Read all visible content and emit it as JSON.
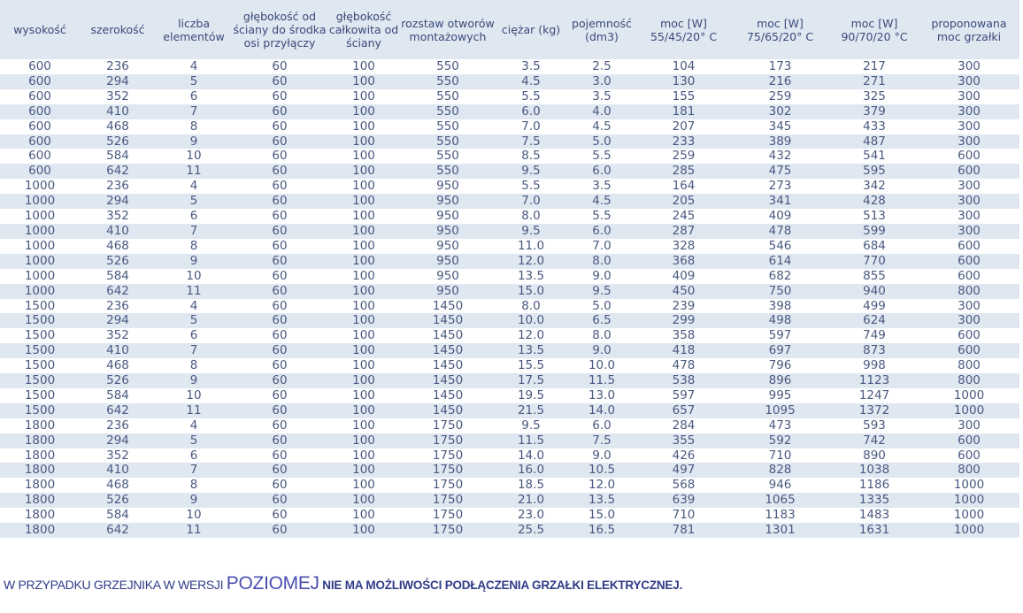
{
  "table": {
    "headers": [
      "wysokość",
      "szerokość",
      "liczba elementów",
      "głębokość od ściany do środka osi przyłączy",
      "głębokość całkowita od ściany",
      "rozstaw otworów montażowych",
      "ciężar (kg)",
      "pojemność (dm3)",
      "moc [W] 55/45/20° C",
      "moc [W] 75/65/20° C",
      "moc [W] 90/70/20 °C",
      "proponowana moc grzałki"
    ],
    "rows": [
      [
        "600",
        "236",
        "4",
        "60",
        "100",
        "550",
        "3.5",
        "2.5",
        "104",
        "173",
        "217",
        "300"
      ],
      [
        "600",
        "294",
        "5",
        "60",
        "100",
        "550",
        "4.5",
        "3.0",
        "130",
        "216",
        "271",
        "300"
      ],
      [
        "600",
        "352",
        "6",
        "60",
        "100",
        "550",
        "5.5",
        "3.5",
        "155",
        "259",
        "325",
        "300"
      ],
      [
        "600",
        "410",
        "7",
        "60",
        "100",
        "550",
        "6.0",
        "4.0",
        "181",
        "302",
        "379",
        "300"
      ],
      [
        "600",
        "468",
        "8",
        "60",
        "100",
        "550",
        "7.0",
        "4.5",
        "207",
        "345",
        "433",
        "300"
      ],
      [
        "600",
        "526",
        "9",
        "60",
        "100",
        "550",
        "7.5",
        "5.0",
        "233",
        "389",
        "487",
        "300"
      ],
      [
        "600",
        "584",
        "10",
        "60",
        "100",
        "550",
        "8.5",
        "5.5",
        "259",
        "432",
        "541",
        "600"
      ],
      [
        "600",
        "642",
        "11",
        "60",
        "100",
        "550",
        "9.5",
        "6.0",
        "285",
        "475",
        "595",
        "600"
      ],
      [
        "1000",
        "236",
        "4",
        "60",
        "100",
        "950",
        "5.5",
        "3.5",
        "164",
        "273",
        "342",
        "300"
      ],
      [
        "1000",
        "294",
        "5",
        "60",
        "100",
        "950",
        "7.0",
        "4.5",
        "205",
        "341",
        "428",
        "300"
      ],
      [
        "1000",
        "352",
        "6",
        "60",
        "100",
        "950",
        "8.0",
        "5.5",
        "245",
        "409",
        "513",
        "300"
      ],
      [
        "1000",
        "410",
        "7",
        "60",
        "100",
        "950",
        "9.5",
        "6.0",
        "287",
        "478",
        "599",
        "300"
      ],
      [
        "1000",
        "468",
        "8",
        "60",
        "100",
        "950",
        "11.0",
        "7.0",
        "328",
        "546",
        "684",
        "600"
      ],
      [
        "1000",
        "526",
        "9",
        "60",
        "100",
        "950",
        "12.0",
        "8.0",
        "368",
        "614",
        "770",
        "600"
      ],
      [
        "1000",
        "584",
        "10",
        "60",
        "100",
        "950",
        "13.5",
        "9.0",
        "409",
        "682",
        "855",
        "600"
      ],
      [
        "1000",
        "642",
        "11",
        "60",
        "100",
        "950",
        "15.0",
        "9.5",
        "450",
        "750",
        "940",
        "800"
      ],
      [
        "1500",
        "236",
        "4",
        "60",
        "100",
        "1450",
        "8.0",
        "5.0",
        "239",
        "398",
        "499",
        "300"
      ],
      [
        "1500",
        "294",
        "5",
        "60",
        "100",
        "1450",
        "10.0",
        "6.5",
        "299",
        "498",
        "624",
        "300"
      ],
      [
        "1500",
        "352",
        "6",
        "60",
        "100",
        "1450",
        "12.0",
        "8.0",
        "358",
        "597",
        "749",
        "600"
      ],
      [
        "1500",
        "410",
        "7",
        "60",
        "100",
        "1450",
        "13.5",
        "9.0",
        "418",
        "697",
        "873",
        "600"
      ],
      [
        "1500",
        "468",
        "8",
        "60",
        "100",
        "1450",
        "15.5",
        "10.0",
        "478",
        "796",
        "998",
        "800"
      ],
      [
        "1500",
        "526",
        "9",
        "60",
        "100",
        "1450",
        "17.5",
        "11.5",
        "538",
        "896",
        "1123",
        "800"
      ],
      [
        "1500",
        "584",
        "10",
        "60",
        "100",
        "1450",
        "19.5",
        "13.0",
        "597",
        "995",
        "1247",
        "1000"
      ],
      [
        "1500",
        "642",
        "11",
        "60",
        "100",
        "1450",
        "21.5",
        "14.0",
        "657",
        "1095",
        "1372",
        "1000"
      ],
      [
        "1800",
        "236",
        "4",
        "60",
        "100",
        "1750",
        "9.5",
        "6.0",
        "284",
        "473",
        "593",
        "300"
      ],
      [
        "1800",
        "294",
        "5",
        "60",
        "100",
        "1750",
        "11.5",
        "7.5",
        "355",
        "592",
        "742",
        "600"
      ],
      [
        "1800",
        "352",
        "6",
        "60",
        "100",
        "1750",
        "14.0",
        "9.0",
        "426",
        "710",
        "890",
        "600"
      ],
      [
        "1800",
        "410",
        "7",
        "60",
        "100",
        "1750",
        "16.0",
        "10.5",
        "497",
        "828",
        "1038",
        "800"
      ],
      [
        "1800",
        "468",
        "8",
        "60",
        "100",
        "1750",
        "18.5",
        "12.0",
        "568",
        "946",
        "1186",
        "1000"
      ],
      [
        "1800",
        "526",
        "9",
        "60",
        "100",
        "1750",
        "21.0",
        "13.5",
        "639",
        "1065",
        "1335",
        "1000"
      ],
      [
        "1800",
        "584",
        "10",
        "60",
        "100",
        "1750",
        "23.0",
        "15.0",
        "710",
        "1183",
        "1483",
        "1000"
      ],
      [
        "1800",
        "642",
        "11",
        "60",
        "100",
        "1750",
        "25.5",
        "16.5",
        "781",
        "1301",
        "1631",
        "1000"
      ]
    ]
  },
  "footer": {
    "part1": "W PRZYPADKU GRZEJNIKA W WERSJI ",
    "part2": "POZIOMEJ",
    "part3": " NIE MA MOŻLIWOŚCI PODŁĄCZENIA GRZAŁKI ELEKTRYCZNEJ."
  },
  "colors": {
    "text": "#3a4a7a",
    "stripe": "#dfe7f1",
    "footer": "#2f3b86",
    "highlight": "#4a4fb0"
  }
}
